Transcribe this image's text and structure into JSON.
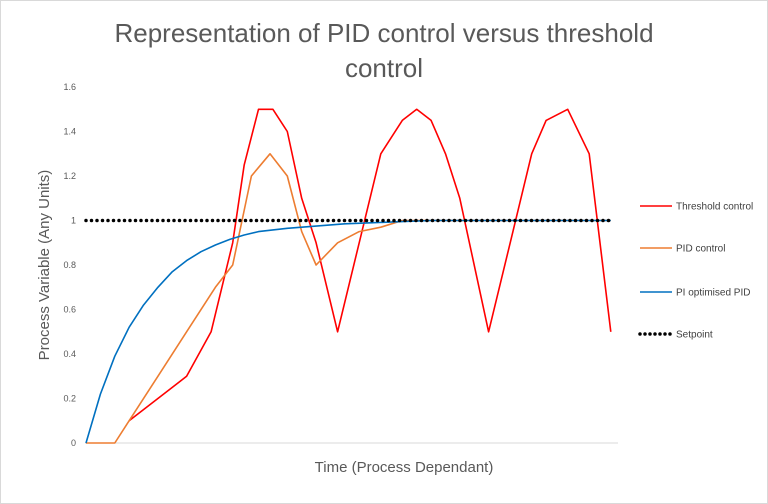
{
  "chart_data": {
    "type": "line",
    "title_line1": "Representation  of PID control versus threshold",
    "title_line2": "control",
    "xlabel": "Time (Process Dependant)",
    "ylabel": "Process Variable (Any Units)",
    "ylim": [
      0,
      1.6
    ],
    "yticks": [
      "0",
      "0.2",
      "0.4",
      "0.6",
      "0.8",
      "1",
      "1.2",
      "1.4",
      "1.6"
    ],
    "ytick_values": [
      0,
      0.2,
      0.4,
      0.6,
      0.8,
      1,
      1.2,
      1.4,
      1.6
    ],
    "xlim": [
      0,
      37
    ],
    "grid": false,
    "legend_position": "right",
    "series": [
      {
        "name": "Threshold control",
        "color": "#ff0000",
        "style": "solid",
        "x": [
          3,
          5,
          7,
          8.7,
          10.2,
          11,
          12,
          13,
          14,
          15,
          16,
          17.5,
          19,
          20.5,
          22,
          23,
          24,
          25,
          26,
          28,
          29.5,
          31,
          32,
          33.5,
          35,
          36.5
        ],
        "y": [
          0.1,
          0.2,
          0.3,
          0.5,
          0.9,
          1.25,
          1.5,
          1.5,
          1.4,
          1.1,
          0.9,
          0.5,
          0.9,
          1.3,
          1.45,
          1.5,
          1.45,
          1.3,
          1.1,
          0.5,
          0.9,
          1.3,
          1.45,
          1.5,
          1.3,
          0.5
        ]
      },
      {
        "name": "PID control",
        "color": "#ed7d31",
        "style": "solid",
        "x": [
          0,
          2,
          3,
          5,
          7,
          9,
          10.2,
          11.5,
          12.8,
          14,
          15,
          16,
          17.5,
          19,
          20.5,
          22,
          24,
          26,
          28,
          30,
          32,
          34,
          36.5
        ],
        "y": [
          0,
          0,
          0.1,
          0.3,
          0.5,
          0.7,
          0.8,
          1.2,
          1.3,
          1.2,
          0.95,
          0.8,
          0.9,
          0.95,
          0.97,
          1.0,
          1,
          1,
          1,
          1,
          1,
          1,
          1
        ]
      },
      {
        "name": "PI optimised PID",
        "color": "#0070c0",
        "style": "solid",
        "x": [
          0,
          1,
          2,
          3,
          4,
          5,
          6,
          7,
          8,
          9,
          10,
          11,
          12,
          14,
          16,
          18,
          20,
          22,
          24,
          26,
          28,
          30,
          32,
          34,
          36.5
        ],
        "y": [
          0,
          0.22,
          0.39,
          0.52,
          0.62,
          0.7,
          0.77,
          0.82,
          0.86,
          0.89,
          0.915,
          0.935,
          0.95,
          0.965,
          0.975,
          0.985,
          0.99,
          0.995,
          1,
          1,
          1,
          1,
          1,
          1,
          1
        ]
      },
      {
        "name": "Setpoint",
        "color": "#000000",
        "style": "dotted",
        "x": [
          0,
          36.5
        ],
        "y": [
          1,
          1
        ]
      }
    ]
  }
}
